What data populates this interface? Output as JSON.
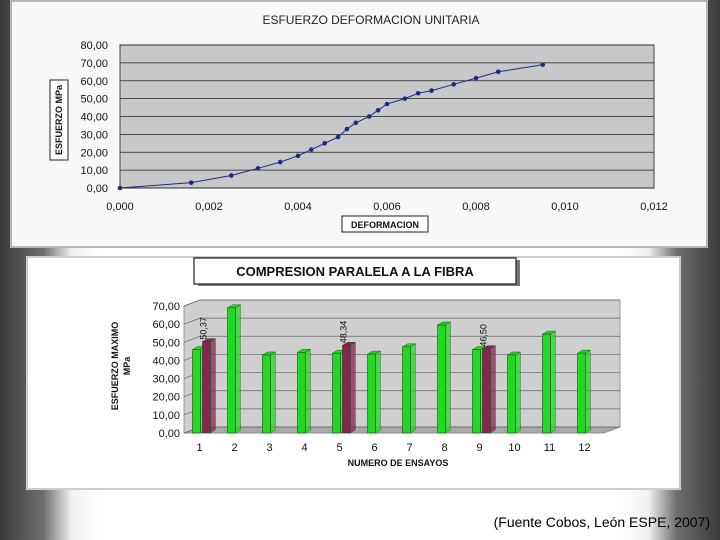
{
  "chart_data": [
    {
      "type": "scatter",
      "title": "ESFUERZO DEFORMACION UNITARIA",
      "xlabel": "DEFORMACION",
      "ylabel": "ESFUERZO MPa",
      "xlim": [
        0,
        0.012
      ],
      "ylim": [
        0,
        80
      ],
      "x_ticks": [
        "0,000",
        "0,002",
        "0,004",
        "0,006",
        "0,008",
        "0,010",
        "0,012"
      ],
      "y_ticks": [
        "0,00",
        "10,00",
        "20,00",
        "30,00",
        "40,00",
        "50,00",
        "60,00",
        "70,00",
        "80,00"
      ],
      "grid": true,
      "series": [
        {
          "color": "#1a2a8a",
          "x": [
            0.0,
            0.0016,
            0.0025,
            0.0031,
            0.0036,
            0.004,
            0.0043,
            0.0046,
            0.0049,
            0.0051,
            0.0053,
            0.0056,
            0.0058,
            0.006,
            0.0064,
            0.0067,
            0.007,
            0.0075,
            0.008,
            0.0085,
            0.0095
          ],
          "y": [
            0.0,
            3.0,
            7.0,
            11.0,
            14.5,
            18.0,
            21.5,
            25.0,
            28.5,
            33.0,
            36.5,
            40.0,
            43.5,
            47.0,
            50.0,
            53.0,
            54.5,
            58.0,
            61.5,
            65.0,
            69.0
          ]
        }
      ]
    },
    {
      "type": "bar",
      "title": "COMPRESION PARALELA A LA FIBRA",
      "xlabel": "NUMERO DE ENSAYOS",
      "ylabel": "ESFUERZO MAXIMO MPa",
      "ylim": [
        0,
        70
      ],
      "y_ticks": [
        "0,00",
        "10,00",
        "20,00",
        "30,00",
        "40,00",
        "50,00",
        "60,00",
        "70,00"
      ],
      "categories": [
        "1",
        "2",
        "3",
        "4",
        "5",
        "6",
        "7",
        "8",
        "9",
        "10",
        "11",
        "12"
      ],
      "grid": true,
      "series": [
        {
          "color": "#22d822",
          "values": [
            46,
            69,
            43,
            44.5,
            44,
            43.5,
            47.5,
            59.5,
            46,
            43,
            54.5,
            44
          ]
        },
        {
          "color": "#8b2252",
          "values": [
            50.37,
            null,
            null,
            null,
            48.34,
            null,
            null,
            null,
            46.5,
            null,
            null,
            null
          ]
        }
      ],
      "data_labels": [
        {
          "category": "1",
          "text": "50,37"
        },
        {
          "category": "5",
          "text": "48,34"
        },
        {
          "category": "9",
          "text": "46,50"
        }
      ]
    }
  ],
  "source": "(Fuente Cobos, León ESPE, 2007)"
}
